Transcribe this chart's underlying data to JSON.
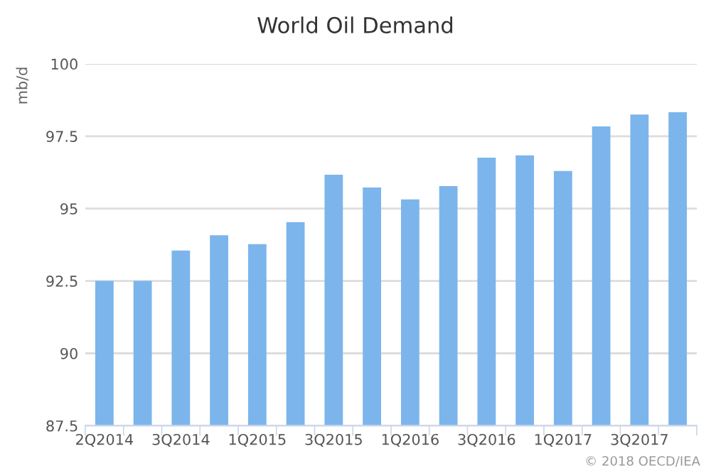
{
  "chart_data": {
    "type": "bar",
    "title": "World Oil Demand",
    "ylabel": "mb/d",
    "categories": [
      "2Q2014",
      null,
      "3Q2014",
      null,
      "1Q2015",
      null,
      "3Q2015",
      null,
      "1Q2016",
      null,
      "3Q2016",
      null,
      "1Q2017",
      null,
      "3Q2017",
      null
    ],
    "values": [
      92.5,
      92.5,
      93.55,
      94.08,
      93.77,
      94.53,
      96.17,
      95.73,
      95.32,
      95.78,
      96.76,
      96.84,
      96.3,
      97.84,
      98.25,
      98.33
    ],
    "color": "#7cb5ec",
    "ylim": [
      87.5,
      100
    ],
    "yticks": [
      87.5,
      90,
      92.5,
      95,
      97.5,
      100
    ],
    "grid": "y",
    "legend": false,
    "annotations": [
      "© 2018 OECD/IEA"
    ]
  }
}
